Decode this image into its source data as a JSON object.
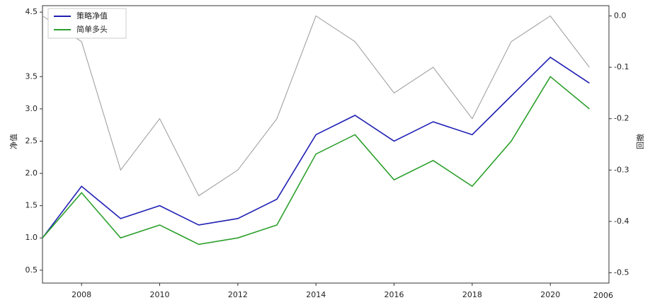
{
  "chart_data": {
    "type": "line",
    "ylabel": "净值",
    "y2label": "回撤",
    "x": [
      2007,
      2008,
      2009,
      2010,
      2011,
      2012,
      2013,
      2014,
      2015,
      2016,
      2017,
      2018,
      2019,
      2020,
      2021
    ],
    "series": [
      {
        "name": "策略净值",
        "color": "#1f1fb4",
        "values": [
          1.0,
          1.8,
          1.3,
          1.5,
          1.2,
          1.3,
          1.6,
          2.6,
          2.9,
          2.5,
          2.8,
          2.6,
          3.2,
          3.8,
          3.4
        ]
      },
      {
        "name": "简单多头",
        "color": "#2ca02c",
        "values": [
          1.0,
          1.7,
          1.0,
          1.2,
          0.9,
          1.0,
          1.2,
          2.3,
          2.6,
          1.9,
          2.2,
          1.8,
          2.5,
          3.5,
          3.0
        ]
      }
    ],
    "drawdown": {
      "color": "#999999",
      "axis": "y2",
      "values": [
        0,
        -0.05,
        -0.3,
        -0.2,
        -0.35,
        -0.3,
        -0.2,
        0,
        -0.05,
        -0.15,
        -0.1,
        -0.2,
        -0.05,
        0,
        -0.1
      ]
    },
    "xlim": [
      2007,
      2021.5
    ],
    "xticks": [
      2008,
      2010,
      2012,
      2014,
      2016,
      2018,
      2020
    ],
    "ylim": [
      0.3,
      4.6
    ],
    "yticks": [
      {
        "value": 0.5,
        "label": "0.5"
      },
      {
        "value": 1,
        "label": "1.0"
      },
      {
        "value": 1.5,
        "label": "1.5"
      },
      {
        "value": 2,
        "label": "2.0"
      },
      {
        "value": 2.5,
        "label": "2.5"
      },
      {
        "value": 3,
        "label": "3.0"
      },
      {
        "value": 3.5,
        "label": "3.5"
      },
      {
        "value": 4.5,
        "label": "4.5"
      }
    ],
    "y2lim": [
      -0.52,
      0.02
    ],
    "y2ticks": [
      {
        "value": 0,
        "label": "0.0"
      },
      {
        "value": -0.1,
        "label": "-0.1"
      },
      {
        "value": -0.2,
        "label": "-0.2"
      },
      {
        "value": -0.3,
        "label": "-0.3"
      },
      {
        "value": -0.4,
        "label": "-0.4"
      },
      {
        "value": -0.5,
        "label": "-0.5"
      }
    ],
    "annotations": [
      "2006"
    ],
    "legend": "upper left"
  }
}
